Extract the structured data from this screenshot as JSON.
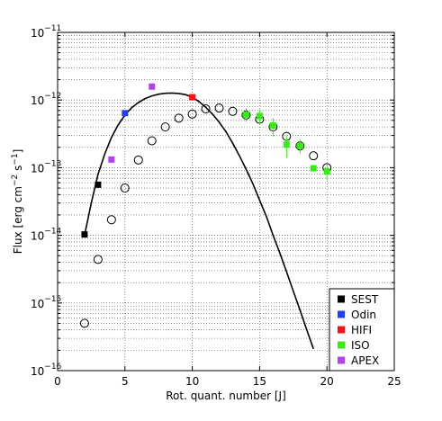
{
  "chart_data": {
    "type": "scatter",
    "xlabel": "Rot. quant. number [J]",
    "ylabel_main": "Flux [erg cm",
    "ylabel_exp1": "−2",
    "ylabel_mid": " s",
    "ylabel_exp2": "−1",
    "ylabel_end": "]",
    "xlim": [
      0,
      25
    ],
    "ylim": [
      1e-16,
      1e-11
    ],
    "yscale": "log",
    "grid": "minor dotted",
    "legend_position": "bottom-right",
    "x_ticks": [
      {
        "value": 0,
        "label": "0"
      },
      {
        "value": 5,
        "label": "5"
      },
      {
        "value": 10,
        "label": "10"
      },
      {
        "value": 15,
        "label": "15"
      },
      {
        "value": 20,
        "label": "20"
      },
      {
        "value": 25,
        "label": "25"
      }
    ],
    "y_ticks": [
      {
        "value": 1e-16,
        "base": "10",
        "exp": "−16"
      },
      {
        "value": 1e-15,
        "base": "10",
        "exp": "−15"
      },
      {
        "value": 1e-14,
        "base": "10",
        "exp": "−14"
      },
      {
        "value": 1e-13,
        "base": "10",
        "exp": "−13"
      },
      {
        "value": 1e-12,
        "base": "10",
        "exp": "−12"
      },
      {
        "value": 1e-11,
        "base": "10",
        "exp": "−11"
      }
    ],
    "model_circles": [
      {
        "x": 2,
        "y": 5e-16
      },
      {
        "x": 3,
        "y": 4.4e-15
      },
      {
        "x": 4,
        "y": 1.7e-14
      },
      {
        "x": 5,
        "y": 5e-14
      },
      {
        "x": 6,
        "y": 1.3e-13
      },
      {
        "x": 7,
        "y": 2.5e-13
      },
      {
        "x": 8,
        "y": 4e-13
      },
      {
        "x": 9,
        "y": 5.4e-13
      },
      {
        "x": 10,
        "y": 6.2e-13
      },
      {
        "x": 11,
        "y": 7.4e-13
      },
      {
        "x": 12,
        "y": 7.6e-13
      },
      {
        "x": 13,
        "y": 6.8e-13
      },
      {
        "x": 14,
        "y": 6e-13
      },
      {
        "x": 15,
        "y": 5.2e-13
      },
      {
        "x": 16,
        "y": 4e-13
      },
      {
        "x": 17,
        "y": 2.9e-13
      },
      {
        "x": 18,
        "y": 2.1e-13
      },
      {
        "x": 19,
        "y": 1.5e-13
      },
      {
        "x": 20,
        "y": 1e-13
      }
    ],
    "model_curve": [
      {
        "x": 2,
        "y": 1e-14
      },
      {
        "x": 2.5,
        "y": 3e-14
      },
      {
        "x": 3,
        "y": 8e-14
      },
      {
        "x": 3.5,
        "y": 1.6e-13
      },
      {
        "x": 4,
        "y": 2.8e-13
      },
      {
        "x": 4.5,
        "y": 4.3e-13
      },
      {
        "x": 5,
        "y": 6e-13
      },
      {
        "x": 5.5,
        "y": 7.7e-13
      },
      {
        "x": 6,
        "y": 9.2e-13
      },
      {
        "x": 6.5,
        "y": 1.05e-12
      },
      {
        "x": 7,
        "y": 1.15e-12
      },
      {
        "x": 7.5,
        "y": 1.22e-12
      },
      {
        "x": 8,
        "y": 1.26e-12
      },
      {
        "x": 8.5,
        "y": 1.27e-12
      },
      {
        "x": 9,
        "y": 1.25e-12
      },
      {
        "x": 9.5,
        "y": 1.2e-12
      },
      {
        "x": 10,
        "y": 1.1e-12
      },
      {
        "x": 10.5,
        "y": 9.5e-13
      },
      {
        "x": 11,
        "y": 7.8e-13
      },
      {
        "x": 11.5,
        "y": 6.2e-13
      },
      {
        "x": 12,
        "y": 4.7e-13
      },
      {
        "x": 12.5,
        "y": 3.4e-13
      },
      {
        "x": 13,
        "y": 2.3e-13
      },
      {
        "x": 13.5,
        "y": 1.5e-13
      },
      {
        "x": 14,
        "y": 9.5e-14
      },
      {
        "x": 14.5,
        "y": 5.8e-14
      },
      {
        "x": 15,
        "y": 3.3e-14
      },
      {
        "x": 15.5,
        "y": 1.9e-14
      },
      {
        "x": 16,
        "y": 1e-14
      },
      {
        "x": 16.5,
        "y": 5.5e-15
      },
      {
        "x": 17,
        "y": 2.9e-15
      },
      {
        "x": 17.5,
        "y": 1.5e-15
      },
      {
        "x": 18,
        "y": 7.8e-16
      },
      {
        "x": 18.5,
        "y": 4e-16
      },
      {
        "x": 19,
        "y": 2.1e-16
      }
    ],
    "series": [
      {
        "name": "SEST",
        "color": "#000000",
        "points": [
          {
            "x": 2,
            "y": 1.03e-14
          },
          {
            "x": 3,
            "y": 5.6e-14
          }
        ]
      },
      {
        "name": "Odin",
        "color": "#1f3fff",
        "points": [
          {
            "x": 5,
            "y": 6.4e-13
          }
        ]
      },
      {
        "name": "HIFI",
        "color": "#ff1010",
        "points": [
          {
            "x": 10,
            "y": 1.1e-12
          }
        ]
      },
      {
        "name": "ISO",
        "color": "#33ee11",
        "points": [
          {
            "x": 14,
            "y": 6.1e-13,
            "lo": 4.8e-13,
            "hi": 7.6e-13
          },
          {
            "x": 15,
            "y": 5.8e-13,
            "lo": 4.4e-13,
            "hi": 7.2e-13
          },
          {
            "x": 16,
            "y": 4.2e-13,
            "lo": 2.9e-13,
            "hi": 5.4e-13
          },
          {
            "x": 17,
            "y": 2.2e-13,
            "lo": 1.4e-13,
            "hi": 3e-13
          },
          {
            "x": 18,
            "y": 2.1e-13,
            "lo": 1.6e-13,
            "hi": 2.6e-13
          },
          {
            "x": 19,
            "y": 9.8e-14,
            "lo": 9.8e-14,
            "hi": 9.8e-14
          },
          {
            "x": 20,
            "y": 8.8e-14,
            "lo": 6.5e-14,
            "hi": 1.1e-13
          }
        ]
      },
      {
        "name": "APEX",
        "color": "#b440ff",
        "points": [
          {
            "x": 4,
            "y": 1.32e-13
          },
          {
            "x": 7,
            "y": 1.58e-12
          }
        ]
      }
    ]
  }
}
